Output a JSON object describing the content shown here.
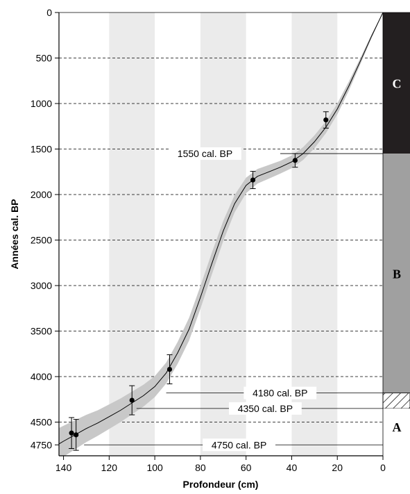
{
  "chart_data": {
    "type": "line",
    "xlabel": "Profondeur (cm)",
    "ylabel": "Années cal. BP",
    "xlim": [
      0,
      142
    ],
    "ylim": [
      0,
      4870
    ],
    "x_reversed": true,
    "x_ticks": [
      0,
      20,
      40,
      60,
      80,
      100,
      120,
      140
    ],
    "y_ticks": [
      0,
      500,
      1000,
      1500,
      2000,
      2500,
      3000,
      3500,
      4000,
      4500,
      4750
    ],
    "y_gridlines": [
      500,
      1000,
      1500,
      2000,
      2500,
      3000,
      3500,
      4000,
      4500
    ],
    "shaded_bands": [
      [
        20,
        40
      ],
      [
        60,
        80
      ],
      [
        100,
        120
      ]
    ],
    "curve": {
      "x": [
        0,
        5,
        10,
        15,
        20,
        25,
        30,
        35,
        40,
        45,
        50,
        55,
        60,
        65,
        70,
        75,
        80,
        85,
        90,
        95,
        100,
        105,
        110,
        115,
        120,
        125,
        130,
        135,
        140,
        142
      ],
      "y": [
        0,
        260,
        540,
        810,
        1060,
        1260,
        1420,
        1550,
        1640,
        1700,
        1750,
        1800,
        1900,
        2100,
        2400,
        2760,
        3130,
        3480,
        3740,
        3960,
        4110,
        4210,
        4290,
        4370,
        4440,
        4510,
        4570,
        4640,
        4710,
        4740
      ],
      "uncertainty": [
        0,
        20,
        35,
        50,
        60,
        65,
        70,
        70,
        70,
        70,
        75,
        80,
        85,
        95,
        110,
        120,
        125,
        125,
        120,
        115,
        115,
        120,
        125,
        130,
        135,
        140,
        150,
        160,
        170,
        175
      ]
    },
    "points": [
      {
        "x": 25,
        "y": 1180,
        "err": 90
      },
      {
        "x": 38.5,
        "y": 1625,
        "err": 75
      },
      {
        "x": 57,
        "y": 1840,
        "err": 95
      },
      {
        "x": 93.5,
        "y": 3920,
        "err": 160
      },
      {
        "x": 110,
        "y": 4260,
        "err": 160
      },
      {
        "x": 136.5,
        "y": 4620,
        "err": 170
      },
      {
        "x": 134.5,
        "y": 4640,
        "err": 170
      }
    ],
    "annotations": [
      {
        "text": "1550 cal. BP",
        "y": 1550,
        "line_from_x": 45,
        "line_to_x": 0
      },
      {
        "text": "4180 cal. BP",
        "y": 4180,
        "line_from_x": 95,
        "line_to_x": 0
      },
      {
        "text": "4350 cal. BP",
        "y": 4350,
        "line_from_x": 108,
        "line_to_x": 0
      },
      {
        "text": "4750 cal. BP",
        "y": 4750,
        "line_from_x": 131,
        "line_to_x": 0
      }
    ],
    "zones": [
      {
        "label": "C",
        "y_from": 0,
        "y_to": 1550,
        "fill": "#231f20",
        "text_color": "#ffffff"
      },
      {
        "label": "B",
        "y_from": 1550,
        "y_to": 4180,
        "fill": "#a0a0a0",
        "text_color": "#000000"
      },
      {
        "label": "",
        "y_from": 4180,
        "y_to": 4350,
        "fill": "hatch",
        "text_color": "#000000"
      },
      {
        "label": "A",
        "y_from": 4350,
        "y_to": 4750,
        "fill": "#ffffff",
        "text_color": "#000000"
      }
    ],
    "colors": {
      "band": "#ebebeb",
      "uncertainty": "#c8c8c8",
      "curve": "#000000"
    }
  }
}
